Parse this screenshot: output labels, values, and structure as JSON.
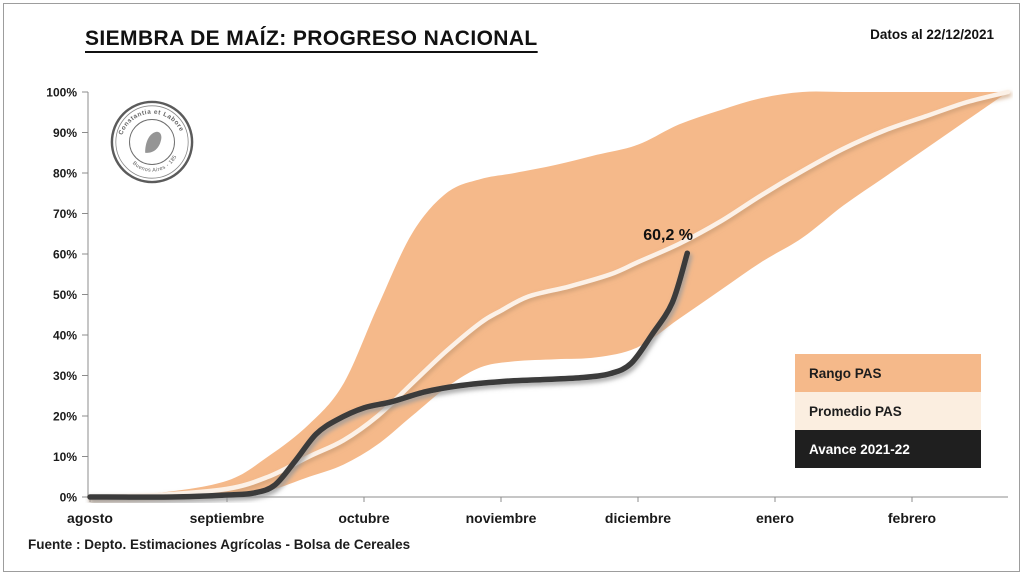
{
  "header": {
    "title": "SIEMBRA DE MAÍZ: PROGRESO NACIONAL",
    "date_note": "Datos al 22/12/2021"
  },
  "logo": {
    "top_text": "Constantia et Labore",
    "bottom_text": "Buenos Aires - 1854"
  },
  "legend": [
    {
      "label": "Rango PAS",
      "color": "#F5B98A",
      "text_color": "#1D1D1D"
    },
    {
      "label": "Promedio PAS",
      "color": "#FBEEE0",
      "text_color": "#1D1D1D"
    },
    {
      "label": "Avance 2021-22",
      "color": "#1F1F1F",
      "text_color": "#FFFFFF"
    }
  ],
  "footer": {
    "source": "Fuente : Depto. Estimaciones Agrícolas - Bolsa de Cereales"
  },
  "chart_data": {
    "type": "area+line",
    "title": "SIEMBRA DE MAÍZ: PROGRESO NACIONAL",
    "x_tick_labels": [
      "agosto",
      "septiembre",
      "octubre",
      "noviembre",
      "diciembre",
      "enero",
      "febrero"
    ],
    "y_tick_labels": [
      "0%",
      "10%",
      "20%",
      "30%",
      "40%",
      "50%",
      "60%",
      "70%",
      "80%",
      "90%",
      "100%"
    ],
    "xlim_months": [
      0,
      6.7
    ],
    "ylim": [
      0,
      100
    ],
    "grid": false,
    "legend_position": "right-inside",
    "band": {
      "name": "Rango PAS",
      "color": "#F5B98A",
      "x": [
        0,
        0.5,
        1,
        1.3,
        1.6,
        1.85,
        2.1,
        2.35,
        2.6,
        2.85,
        3.1,
        3.4,
        3.7,
        4,
        4.3,
        4.6,
        4.9,
        5.2,
        5.5,
        5.8,
        6.1,
        6.4,
        6.7
      ],
      "upper": [
        0,
        1,
        4,
        10,
        18,
        28,
        47,
        65,
        75,
        78.5,
        80,
        82,
        84.5,
        87,
        92,
        95.5,
        98.5,
        100,
        100,
        100,
        100,
        100,
        100
      ],
      "lower": [
        0,
        0,
        0,
        1.5,
        5,
        8,
        13,
        20,
        27,
        32,
        33.5,
        34,
        34.5,
        37,
        44,
        51,
        58,
        64,
        72,
        79,
        86,
        93,
        100
      ]
    },
    "lines": [
      {
        "name": "Promedio PAS",
        "color": "#FCF1E7",
        "x": [
          0,
          0.5,
          1,
          1.3,
          1.6,
          1.85,
          2.1,
          2.35,
          2.6,
          2.85,
          3,
          3.2,
          3.5,
          3.8,
          4,
          4.3,
          4.6,
          4.9,
          5.2,
          5.5,
          5.8,
          6.1,
          6.4,
          6.7
        ],
        "y": [
          0,
          0.5,
          2,
          5,
          10,
          14,
          20,
          28,
          36,
          43,
          46,
          49.5,
          52,
          55,
          58,
          62.5,
          68,
          74.5,
          80.5,
          86,
          90.5,
          94,
          97.5,
          100
        ]
      },
      {
        "name": "Avance 2021-22",
        "color": "#3B3B3B",
        "x": [
          0,
          0.6,
          1,
          1.2,
          1.35,
          1.5,
          1.65,
          1.8,
          2,
          2.2,
          2.45,
          2.7,
          3,
          3.3,
          3.6,
          3.8,
          3.95,
          4.1,
          4.25,
          4.36
        ],
        "y": [
          0,
          0,
          0.5,
          1,
          3,
          9,
          15.5,
          19,
          22,
          23.5,
          26,
          27.5,
          28.5,
          29,
          29.5,
          30.5,
          33,
          40,
          48,
          60.2
        ]
      }
    ],
    "annotation": {
      "text": "60,2 %",
      "x": 4.22,
      "y": 63.5
    }
  }
}
